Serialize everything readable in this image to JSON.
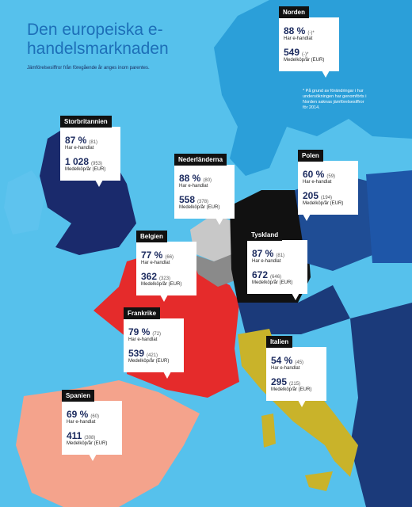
{
  "title": "Den europeiska e-handelsmarknaden",
  "subtitle": "Jämförelsesiffror från föregående år anges inom parentes.",
  "note": "* På grund av förändringar i hur undersökningen har genomförts i Norden saknas jämförelsesiffror för 2014.",
  "labels": {
    "share": "Har e-handlat",
    "spend": "Medelköp/år (EUR)"
  },
  "regions": [
    {
      "name": "Norden",
      "share": "88 %",
      "share_prev": "(-)*",
      "spend": "549",
      "spend_prev": "(-)*"
    },
    {
      "name": "Storbritannien",
      "share": "87 %",
      "share_prev": "(81)",
      "spend": "1 028",
      "spend_prev": "(953)"
    },
    {
      "name": "Nederländerna",
      "share": "88 %",
      "share_prev": "(80)",
      "spend": "558",
      "spend_prev": "(378)"
    },
    {
      "name": "Polen",
      "share": "60 %",
      "share_prev": "(59)",
      "spend": "205",
      "spend_prev": "(194)"
    },
    {
      "name": "Belgien",
      "share": "77 %",
      "share_prev": "(66)",
      "spend": "362",
      "spend_prev": "(323)"
    },
    {
      "name": "Tyskland",
      "share": "87 %",
      "share_prev": "(81)",
      "spend": "672",
      "spend_prev": "(646)"
    },
    {
      "name": "Frankrike",
      "share": "79 %",
      "share_prev": "(72)",
      "spend": "539",
      "spend_prev": "(421)"
    },
    {
      "name": "Italien",
      "share": "54 %",
      "share_prev": "(45)",
      "spend": "295",
      "spend_prev": "(215)"
    },
    {
      "name": "Spanien",
      "share": "69 %",
      "share_prev": "(60)",
      "spend": "411",
      "spend_prev": "(308)"
    }
  ]
}
